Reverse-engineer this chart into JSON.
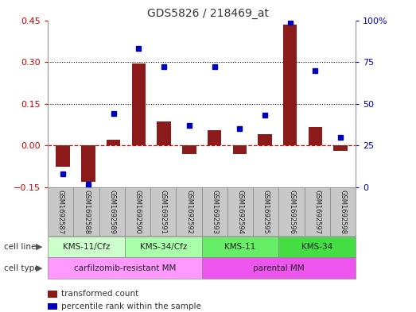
{
  "title": "GDS5826 / 218469_at",
  "samples": [
    "GSM1692587",
    "GSM1692588",
    "GSM1692589",
    "GSM1692590",
    "GSM1692591",
    "GSM1692592",
    "GSM1692593",
    "GSM1692594",
    "GSM1692595",
    "GSM1692596",
    "GSM1692597",
    "GSM1692598"
  ],
  "transformed_count": [
    -0.075,
    -0.13,
    0.02,
    0.295,
    0.085,
    -0.03,
    0.055,
    -0.03,
    0.04,
    0.435,
    0.065,
    -0.02
  ],
  "percentile_rank": [
    8,
    2,
    44,
    83,
    72,
    37,
    72,
    35,
    43,
    99,
    70,
    30
  ],
  "bar_color": "#8B1A1A",
  "dot_color": "#0000BB",
  "dashed_line_color": "#CC0000",
  "grid_line_color": "#000000",
  "left_ylim": [
    -0.15,
    0.45
  ],
  "right_ylim": [
    0,
    100
  ],
  "left_yticks": [
    -0.15,
    0.0,
    0.15,
    0.3,
    0.45
  ],
  "right_yticks": [
    0,
    25,
    50,
    75,
    100
  ],
  "right_yticklabels": [
    "0",
    "25",
    "50",
    "75",
    "100%"
  ],
  "cell_line_groups": [
    {
      "label": "KMS-11/Cfz",
      "start": 0,
      "end": 3,
      "color": "#CCFFCC"
    },
    {
      "label": "KMS-34/Cfz",
      "start": 3,
      "end": 6,
      "color": "#AAFFAA"
    },
    {
      "label": "KMS-11",
      "start": 6,
      "end": 9,
      "color": "#66EE66"
    },
    {
      "label": "KMS-34",
      "start": 9,
      "end": 12,
      "color": "#44DD44"
    }
  ],
  "cell_type_groups": [
    {
      "label": "carfilzomib-resistant MM",
      "start": 0,
      "end": 6,
      "color": "#FF99FF"
    },
    {
      "label": "parental MM",
      "start": 6,
      "end": 12,
      "color": "#EE55EE"
    }
  ],
  "legend_items": [
    {
      "label": "transformed count",
      "color": "#8B1A1A"
    },
    {
      "label": "percentile rank within the sample",
      "color": "#0000BB"
    }
  ],
  "background_color": "#FFFFFF",
  "plot_bg_color": "#FFFFFF",
  "axis_color_left": "#CC0000",
  "axis_color_right": "#0000BB",
  "box_color": "#C8C8C8",
  "box_edge_color": "#888888"
}
